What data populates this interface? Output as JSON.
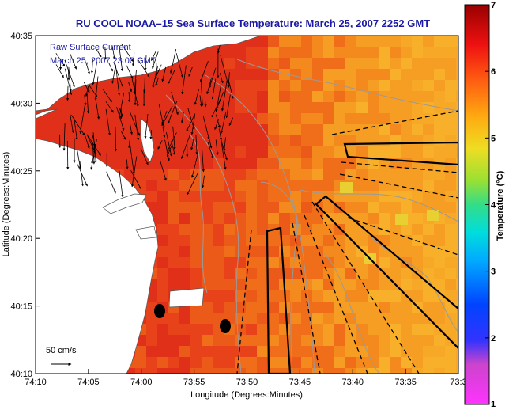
{
  "title": "RU COOL  NOAA–15  Sea Surface Temperature:  March 25, 2007 2252 GMT",
  "legend": {
    "line1": "Raw Surface Current",
    "line2": "March 25, 2007 23:00 GMT",
    "scale_label": "50 cm/s"
  },
  "axes": {
    "xlabel": "Longitude (Degrees:Minutes)",
    "ylabel": "Latitude (Degrees:Minutes)",
    "x_ticks": [
      "74:10",
      "74:05",
      "74:00",
      "73:55",
      "73:50",
      "73:45",
      "73:40",
      "73:35",
      "73:3"
    ],
    "y_ticks": [
      "40:35",
      "40:30",
      "40:25",
      "40:20",
      "40:15",
      "40:10"
    ]
  },
  "colorbar": {
    "label": "Temperature (°C)",
    "ticks": [
      "7",
      "6",
      "5",
      "4",
      "3",
      "2",
      "1"
    ],
    "range": [
      1,
      7
    ]
  },
  "map": {
    "land_color": "#ffffff",
    "ocean_warm": "#e8401a",
    "ocean_mid": "#f07a18",
    "ocean_cool": "#f5a623",
    "contour_color": "#9a9a9a",
    "marker_color": "#000000"
  }
}
